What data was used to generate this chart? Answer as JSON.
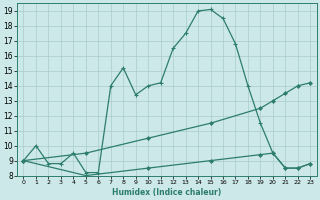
{
  "xlabel": "Humidex (Indice chaleur)",
  "bg_color": "#cce8e8",
  "grid_color": "#aacccc",
  "line_color": "#2d7d6e",
  "xlim": [
    -0.5,
    23.5
  ],
  "ylim": [
    8,
    19.5
  ],
  "xtick_labels": [
    "0",
    "1",
    "2",
    "3",
    "4",
    "5",
    "6",
    "7",
    "8",
    "9",
    "10",
    "11",
    "12",
    "13",
    "14",
    "15",
    "16",
    "17",
    "18",
    "19",
    "20",
    "21",
    "22",
    "23"
  ],
  "xtick_pos": [
    0,
    1,
    2,
    3,
    4,
    5,
    6,
    7,
    8,
    9,
    10,
    11,
    12,
    13,
    14,
    15,
    16,
    17,
    18,
    19,
    20,
    21,
    22,
    23
  ],
  "ytick_labels": [
    "8",
    "9",
    "10",
    "11",
    "12",
    "13",
    "14",
    "15",
    "16",
    "17",
    "18",
    "19"
  ],
  "ytick_pos": [
    8,
    9,
    10,
    11,
    12,
    13,
    14,
    15,
    16,
    17,
    18,
    19
  ],
  "line1_x": [
    0,
    1,
    2,
    3,
    4,
    5,
    6,
    7,
    8,
    9,
    10,
    11,
    12,
    13,
    14,
    15,
    16,
    17,
    18,
    19,
    20,
    21,
    22,
    23
  ],
  "line1_y": [
    9.0,
    10.0,
    8.8,
    8.8,
    9.5,
    8.2,
    8.2,
    14.0,
    15.2,
    13.4,
    14.0,
    14.2,
    16.5,
    17.5,
    19.0,
    19.1,
    18.5,
    16.8,
    14.0,
    11.5,
    9.5,
    8.5,
    8.5,
    8.8
  ],
  "line2_x": [
    0,
    5,
    10,
    15,
    19,
    20,
    21,
    22,
    23
  ],
  "line2_y": [
    9.0,
    9.5,
    10.5,
    11.5,
    12.5,
    13.0,
    13.5,
    14.0,
    14.2
  ],
  "line3_x": [
    0,
    5,
    10,
    15,
    19,
    20,
    21,
    22,
    23
  ],
  "line3_y": [
    9.0,
    8.0,
    8.5,
    9.0,
    9.4,
    9.5,
    8.5,
    8.5,
    8.8
  ]
}
